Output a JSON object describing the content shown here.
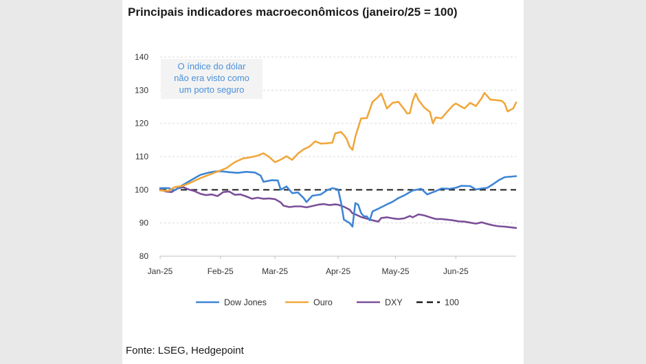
{
  "chart_data": {
    "type": "line",
    "title": "Principais indicadores macroeconômicos (janeiro/25 = 100)",
    "source": "Fonte: LSEG, Hedgepoint",
    "annotation": [
      "O índice do dólar",
      "não era visto como",
      "um porto seguro"
    ],
    "ylim": [
      80,
      140
    ],
    "yticks": [
      80,
      90,
      100,
      110,
      120,
      130,
      140
    ],
    "x_range": [
      0,
      124
    ],
    "x_tick_labels": [
      "Jan-25",
      "Feb-25",
      "Mar-25",
      "Apr-25",
      "May-25",
      "Jun-25"
    ],
    "x_tick_positions": [
      0,
      21,
      40,
      62,
      82,
      103
    ],
    "grid": true,
    "legend_placement": "bottom",
    "reference_line": {
      "name": "100",
      "value": 100,
      "color": "#1a1a1a"
    },
    "series": [
      {
        "name": "Dow Jones",
        "color": "#3d85d6",
        "points": [
          [
            0,
            100.5
          ],
          [
            3,
            100.5
          ],
          [
            5,
            99.8
          ],
          [
            8,
            101.5
          ],
          [
            11,
            103
          ],
          [
            14,
            104.5
          ],
          [
            17,
            105.2
          ],
          [
            19,
            105.5
          ],
          [
            21,
            105.6
          ],
          [
            24,
            105.3
          ],
          [
            27,
            105.1
          ],
          [
            30,
            105.4
          ],
          [
            33,
            105.2
          ],
          [
            35,
            104.3
          ],
          [
            36,
            102.4
          ],
          [
            39,
            102.9
          ],
          [
            41,
            102.8
          ],
          [
            42,
            100
          ],
          [
            44,
            101
          ],
          [
            46,
            99
          ],
          [
            48,
            99.2
          ],
          [
            50,
            97.5
          ],
          [
            51,
            96.3
          ],
          [
            53,
            98.2
          ],
          [
            56,
            98.6
          ],
          [
            58,
            99.8
          ],
          [
            60,
            100.5
          ],
          [
            62,
            100.1
          ],
          [
            63,
            96.2
          ],
          [
            64,
            91
          ],
          [
            66,
            90
          ],
          [
            67,
            88.9
          ],
          [
            68,
            96
          ],
          [
            69,
            95.5
          ],
          [
            70,
            93
          ],
          [
            71,
            92
          ],
          [
            72,
            92
          ],
          [
            73,
            90.8
          ],
          [
            74,
            93.5
          ],
          [
            76,
            94.3
          ],
          [
            79,
            95.6
          ],
          [
            81,
            96.4
          ],
          [
            83,
            97.5
          ],
          [
            85,
            98.3
          ],
          [
            88,
            99.8
          ],
          [
            91,
            100.3
          ],
          [
            93,
            98.6
          ],
          [
            96,
            99.6
          ],
          [
            98,
            100.4
          ],
          [
            101,
            100.3
          ],
          [
            103,
            100.6
          ],
          [
            105,
            101.2
          ],
          [
            108,
            101.1
          ],
          [
            110,
            100.1
          ],
          [
            112,
            100.4
          ],
          [
            114,
            100.6
          ],
          [
            116,
            101.7
          ],
          [
            118,
            102.9
          ],
          [
            120,
            103.8
          ],
          [
            124,
            104.1
          ]
        ]
      },
      {
        "name": "Ouro",
        "color": "#f0a73a",
        "points": [
          [
            0,
            99.8
          ],
          [
            3,
            99.7
          ],
          [
            5,
            100.8
          ],
          [
            8,
            101.2
          ],
          [
            11,
            102.3
          ],
          [
            14,
            103.5
          ],
          [
            17,
            104.5
          ],
          [
            20,
            105.5
          ],
          [
            23,
            106.5
          ],
          [
            26,
            108.3
          ],
          [
            29,
            109.5
          ],
          [
            31,
            109.7
          ],
          [
            34,
            110.3
          ],
          [
            36,
            111
          ],
          [
            38,
            109.9
          ],
          [
            40,
            108.3
          ],
          [
            42,
            109.1
          ],
          [
            44,
            110.1
          ],
          [
            46,
            109
          ],
          [
            48,
            110.9
          ],
          [
            50,
            112.2
          ],
          [
            52,
            113
          ],
          [
            54,
            114.6
          ],
          [
            56,
            113.9
          ],
          [
            58,
            114
          ],
          [
            60,
            114.2
          ],
          [
            61,
            117
          ],
          [
            63,
            117.4
          ],
          [
            64,
            116.5
          ],
          [
            65,
            115.3
          ],
          [
            66,
            113
          ],
          [
            67,
            112
          ],
          [
            68,
            116
          ],
          [
            70,
            121.5
          ],
          [
            72,
            121.6
          ],
          [
            74,
            126.5
          ],
          [
            76,
            128
          ],
          [
            77,
            129
          ],
          [
            78,
            126.8
          ],
          [
            79,
            124.5
          ],
          [
            81,
            126.2
          ],
          [
            83,
            126.5
          ],
          [
            85,
            124.3
          ],
          [
            86,
            123
          ],
          [
            87,
            123.1
          ],
          [
            88,
            126.8
          ],
          [
            89,
            129
          ],
          [
            90,
            127
          ],
          [
            92,
            124.8
          ],
          [
            94,
            123.4
          ],
          [
            95,
            120
          ],
          [
            96,
            121.8
          ],
          [
            98,
            121.5
          ],
          [
            100,
            123.5
          ],
          [
            102,
            125.4
          ],
          [
            103,
            126
          ],
          [
            104,
            125.5
          ],
          [
            106,
            124.5
          ],
          [
            108,
            126.2
          ],
          [
            110,
            125.2
          ],
          [
            112,
            127.6
          ],
          [
            113,
            129.2
          ],
          [
            115,
            127.2
          ],
          [
            117,
            127
          ],
          [
            119,
            126.8
          ],
          [
            120,
            126
          ],
          [
            121,
            123.6
          ],
          [
            123,
            124.5
          ],
          [
            124,
            126.3
          ]
        ]
      },
      {
        "name": "DXY",
        "color": "#7a4f98",
        "points": [
          [
            0,
            100
          ],
          [
            2,
            99.5
          ],
          [
            4,
            99.3
          ],
          [
            6,
            100.4
          ],
          [
            8,
            100.8
          ],
          [
            10,
            100.1
          ],
          [
            12,
            99.6
          ],
          [
            14,
            98.8
          ],
          [
            16,
            98.4
          ],
          [
            18,
            98.6
          ],
          [
            20,
            98.1
          ],
          [
            22,
            99.3
          ],
          [
            24,
            99.5
          ],
          [
            26,
            98.5
          ],
          [
            28,
            98.6
          ],
          [
            30,
            98
          ],
          [
            32,
            97.3
          ],
          [
            34,
            97.6
          ],
          [
            36,
            97.3
          ],
          [
            38,
            97.4
          ],
          [
            40,
            97.2
          ],
          [
            42,
            96.2
          ],
          [
            43,
            95.2
          ],
          [
            45,
            94.8
          ],
          [
            47,
            95
          ],
          [
            49,
            95
          ],
          [
            51,
            94.7
          ],
          [
            53,
            95.1
          ],
          [
            55,
            95.5
          ],
          [
            57,
            95.7
          ],
          [
            59,
            95.4
          ],
          [
            61,
            95.6
          ],
          [
            62,
            95.5
          ],
          [
            64,
            94.9
          ],
          [
            66,
            94
          ],
          [
            67,
            92.9
          ],
          [
            68,
            92.6
          ],
          [
            70,
            91.8
          ],
          [
            72,
            91.3
          ],
          [
            74,
            90.8
          ],
          [
            76,
            90.4
          ],
          [
            77,
            91.5
          ],
          [
            79,
            91.7
          ],
          [
            81,
            91.4
          ],
          [
            83,
            91.2
          ],
          [
            85,
            91.4
          ],
          [
            87,
            92.1
          ],
          [
            88,
            91.7
          ],
          [
            90,
            92.6
          ],
          [
            92,
            92.3
          ],
          [
            94,
            91.7
          ],
          [
            96,
            91.2
          ],
          [
            98,
            91.2
          ],
          [
            100,
            91
          ],
          [
            102,
            90.8
          ],
          [
            104,
            90.5
          ],
          [
            106,
            90.4
          ],
          [
            108,
            90.1
          ],
          [
            110,
            89.8
          ],
          [
            112,
            90.2
          ],
          [
            114,
            89.7
          ],
          [
            116,
            89.3
          ],
          [
            118,
            89
          ],
          [
            120,
            88.9
          ],
          [
            122,
            88.7
          ],
          [
            124,
            88.5
          ]
        ]
      }
    ]
  }
}
